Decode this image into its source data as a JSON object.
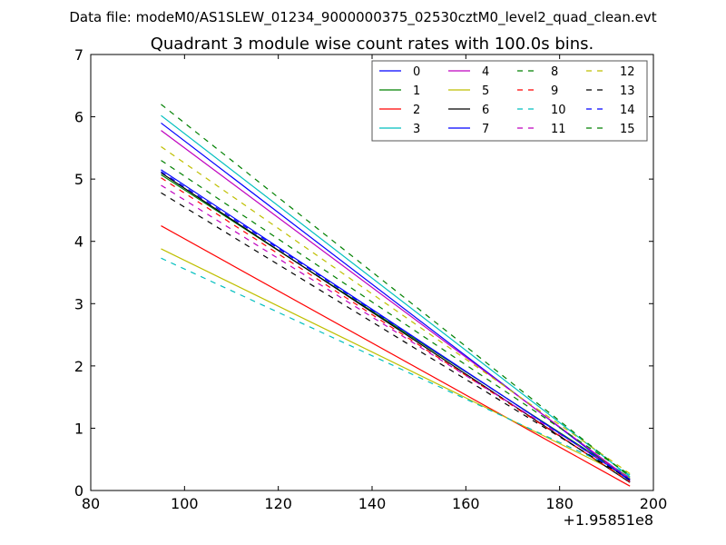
{
  "suptitle": "Data file: modeM0/AS1SLEW_01234_9000000375_02530cztM0_level2_quad_clean.evt",
  "chart_data": {
    "type": "line",
    "title": "Quadrant 3 module wise count rates with 100.0s bins.",
    "xlabel": "",
    "ylabel": "",
    "xlim": [
      80,
      200
    ],
    "ylim": [
      0,
      7
    ],
    "x_offset_text": "+1.95851e8",
    "xticks": [
      80,
      100,
      120,
      140,
      160,
      180,
      200
    ],
    "xtick_labels": [
      "80",
      "100",
      "120",
      "140",
      "160",
      "180",
      "200"
    ],
    "yticks": [
      0,
      1,
      2,
      3,
      4,
      5,
      6,
      7
    ],
    "ytick_labels": [
      "0",
      "1",
      "2",
      "3",
      "4",
      "5",
      "6",
      "7"
    ],
    "legend": "top-right",
    "series": [
      {
        "name": "0",
        "x": [
          95,
          195
        ],
        "values": [
          5.9,
          0.15
        ],
        "color": "#0000ff",
        "dash": "solid"
      },
      {
        "name": "1",
        "x": [
          95,
          195
        ],
        "values": [
          5.07,
          0.2
        ],
        "color": "#008000",
        "dash": "solid"
      },
      {
        "name": "2",
        "x": [
          95,
          195
        ],
        "values": [
          4.25,
          0.07
        ],
        "color": "#ff0000",
        "dash": "solid"
      },
      {
        "name": "3",
        "x": [
          95,
          195
        ],
        "values": [
          6.02,
          0.22
        ],
        "color": "#00bfbf",
        "dash": "solid"
      },
      {
        "name": "4",
        "x": [
          95,
          195
        ],
        "values": [
          5.78,
          0.18
        ],
        "color": "#bf00bf",
        "dash": "solid"
      },
      {
        "name": "5",
        "x": [
          95,
          195
        ],
        "values": [
          3.88,
          0.2
        ],
        "color": "#bfbf00",
        "dash": "solid"
      },
      {
        "name": "6",
        "x": [
          95,
          195
        ],
        "values": [
          5.1,
          0.13
        ],
        "color": "#000000",
        "dash": "solid"
      },
      {
        "name": "7",
        "x": [
          95,
          195
        ],
        "values": [
          5.15,
          0.17
        ],
        "color": "#0000ff",
        "dash": "solid"
      },
      {
        "name": "8",
        "x": [
          95,
          195
        ],
        "values": [
          5.3,
          0.25
        ],
        "color": "#008000",
        "dash": "dashed"
      },
      {
        "name": "9",
        "x": [
          95,
          195
        ],
        "values": [
          5.02,
          0.14
        ],
        "color": "#ff0000",
        "dash": "dashed"
      },
      {
        "name": "10",
        "x": [
          95,
          195
        ],
        "values": [
          3.73,
          0.25
        ],
        "color": "#00bfbf",
        "dash": "dashed"
      },
      {
        "name": "11",
        "x": [
          95,
          195
        ],
        "values": [
          4.9,
          0.2
        ],
        "color": "#bf00bf",
        "dash": "dashed"
      },
      {
        "name": "12",
        "x": [
          95,
          195
        ],
        "values": [
          5.52,
          0.27
        ],
        "color": "#bfbf00",
        "dash": "dashed"
      },
      {
        "name": "13",
        "x": [
          95,
          195
        ],
        "values": [
          4.78,
          0.17
        ],
        "color": "#000000",
        "dash": "dashed"
      },
      {
        "name": "14",
        "x": [
          95,
          195
        ],
        "values": [
          5.12,
          0.18
        ],
        "color": "#0000ff",
        "dash": "dashed"
      },
      {
        "name": "15",
        "x": [
          95,
          195
        ],
        "values": [
          6.2,
          0.22
        ],
        "color": "#008000",
        "dash": "dashed"
      }
    ]
  }
}
